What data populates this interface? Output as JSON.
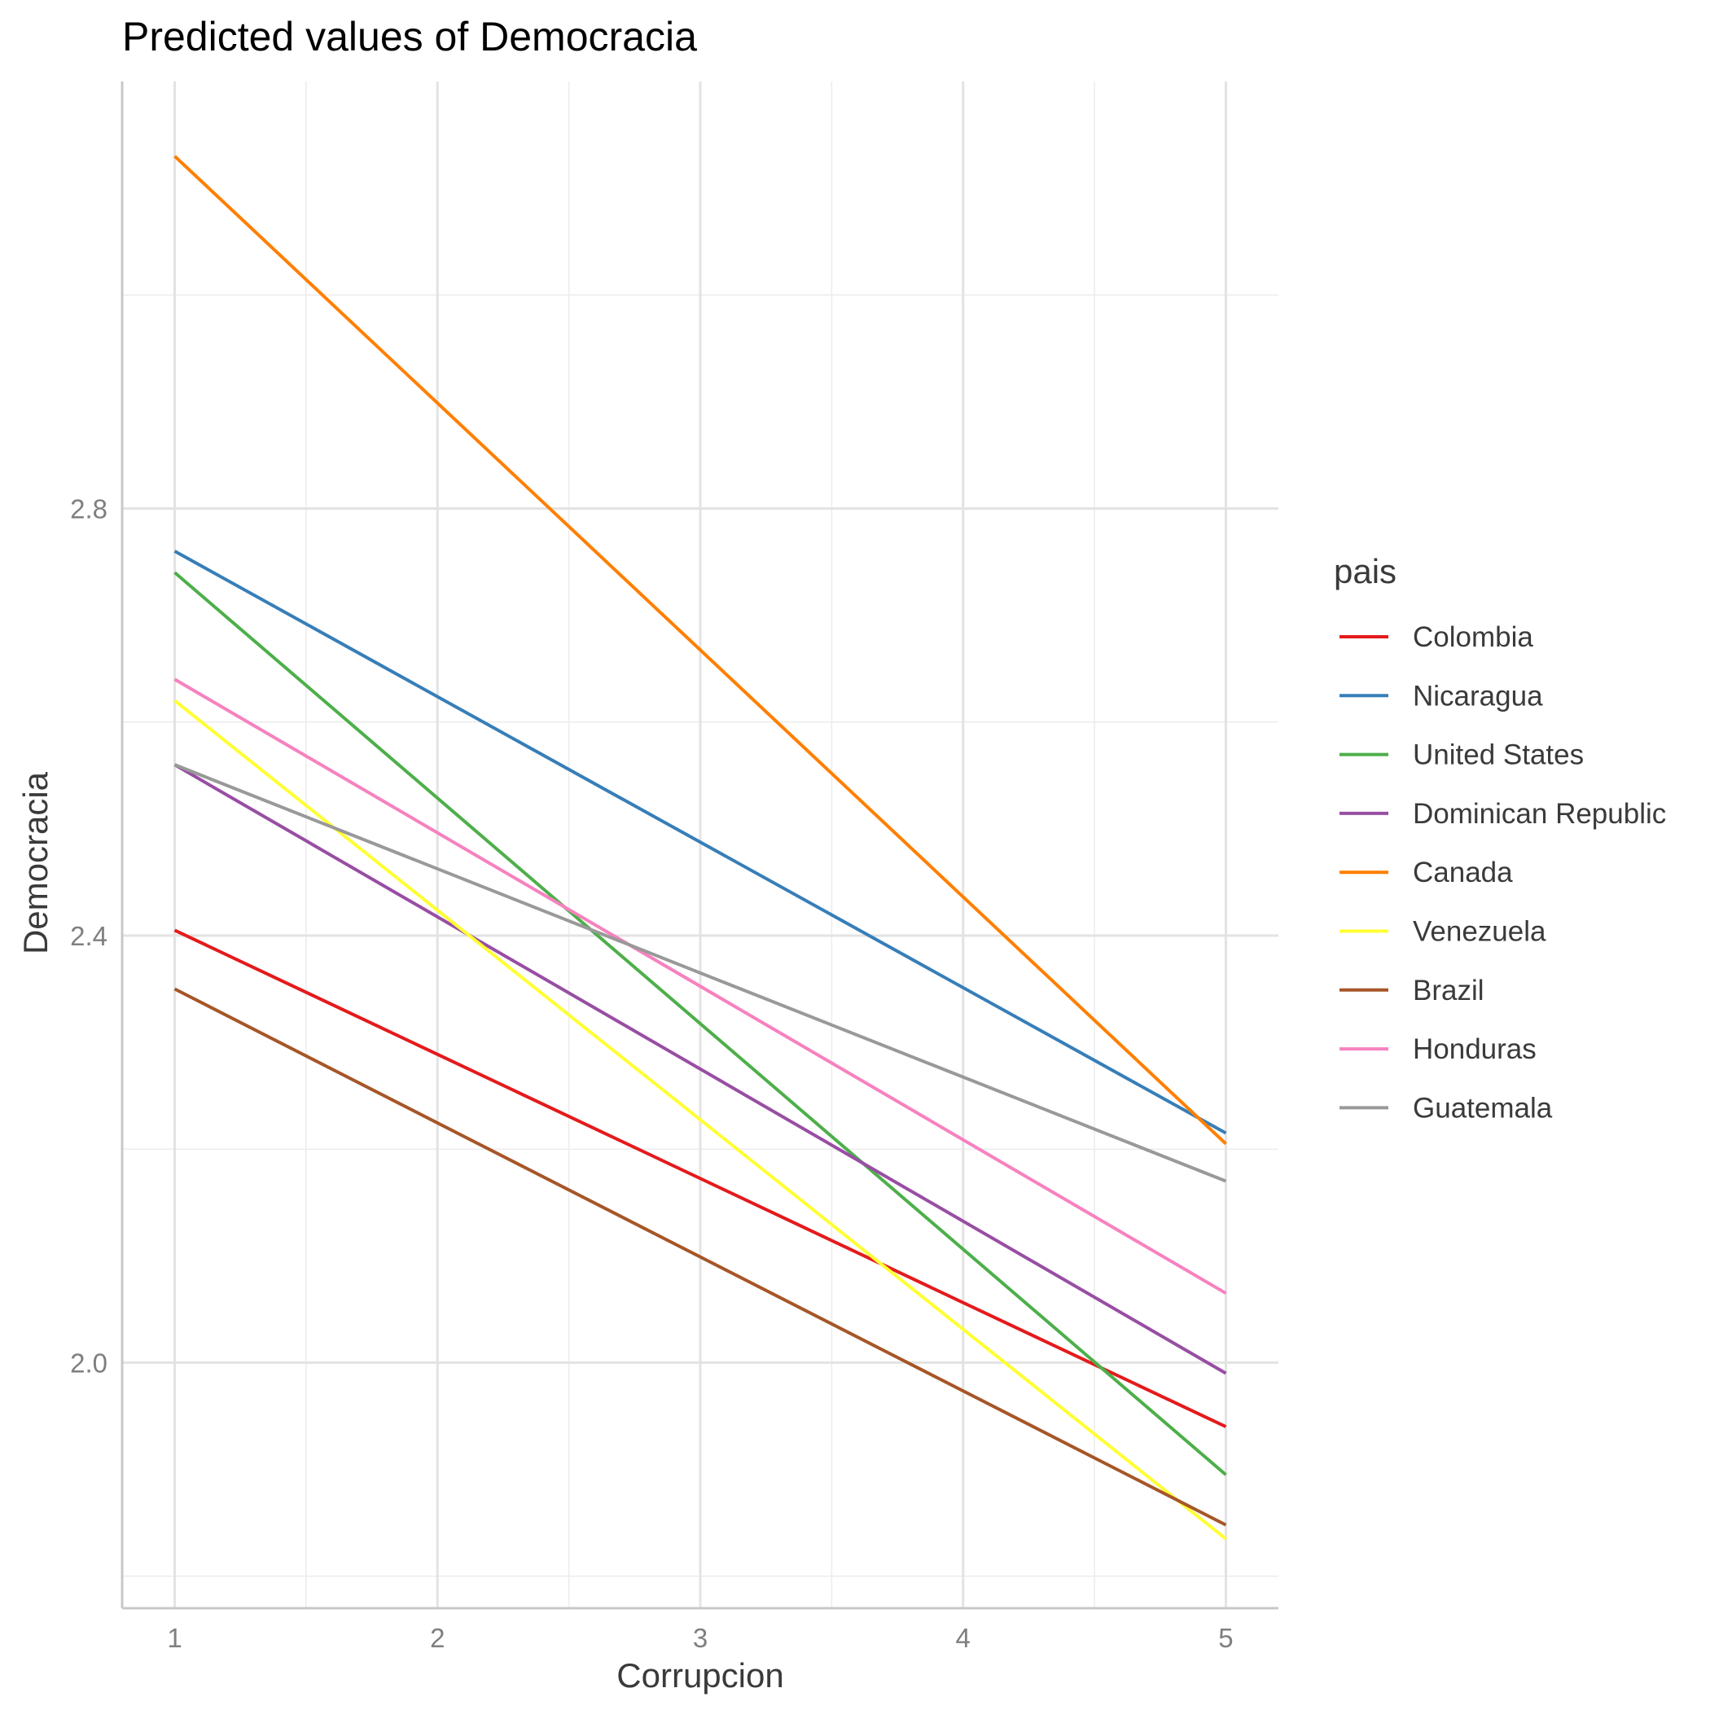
{
  "chart_data": {
    "type": "line",
    "title": "Predicted values of Democracia",
    "xlabel": "Corrupcion",
    "ylabel": "Democracia",
    "x": [
      1,
      5
    ],
    "xlim": [
      0.8,
      5.2
    ],
    "ylim": [
      1.77,
      3.2
    ],
    "x_ticks": [
      1,
      2,
      3,
      4,
      5
    ],
    "x_tick_labels": [
      "1",
      "2",
      "3",
      "4",
      "5"
    ],
    "y_ticks": [
      2.0,
      2.4,
      2.8
    ],
    "y_tick_labels": [
      "2.0",
      "2.4",
      "2.8"
    ],
    "grid": true,
    "legend": {
      "title": "pais",
      "position": "right"
    },
    "series": [
      {
        "name": "Colombia",
        "color": "#e41a1c",
        "values": [
          2.405,
          1.94
        ]
      },
      {
        "name": "Nicaragua",
        "color": "#377eb8",
        "values": [
          2.76,
          2.215
        ]
      },
      {
        "name": "United States",
        "color": "#4daf4a",
        "values": [
          2.74,
          1.895
        ]
      },
      {
        "name": "Dominican Republic",
        "color": "#984ea3",
        "values": [
          2.56,
          1.99
        ]
      },
      {
        "name": "Canada",
        "color": "#ff7f00",
        "values": [
          3.13,
          2.205
        ]
      },
      {
        "name": "Venezuela",
        "color": "#ffff33",
        "values": [
          2.62,
          1.835
        ]
      },
      {
        "name": "Brazil",
        "color": "#a65628",
        "values": [
          2.35,
          1.848
        ]
      },
      {
        "name": "Honduras",
        "color": "#f781bf",
        "values": [
          2.64,
          2.065
        ]
      },
      {
        "name": "Guatemala",
        "color": "#999999",
        "values": [
          2.56,
          2.17
        ]
      }
    ]
  }
}
